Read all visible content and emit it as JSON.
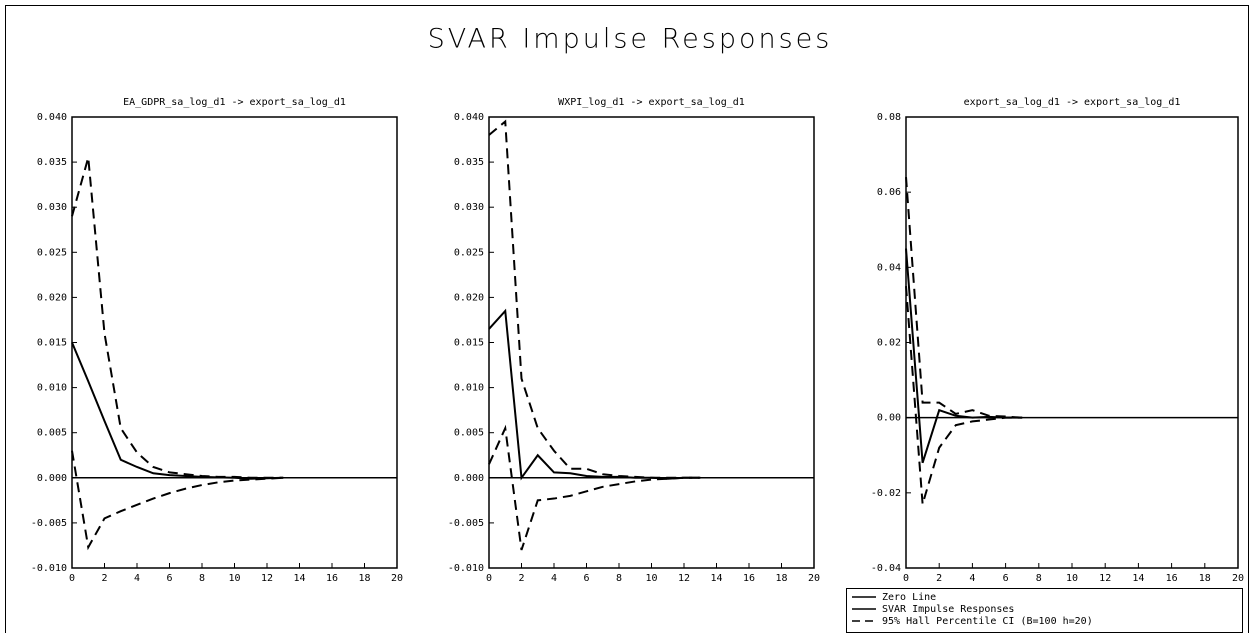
{
  "title": "SVAR Impulse Responses",
  "legend": [
    "Zero Line",
    "SVAR Impulse Responses",
    "95% Hall Percentile CI (B=100 h=20)"
  ],
  "chart_data": [
    {
      "type": "line",
      "title": "EA_GDPR_sa_log_d1 -> export_sa_log_d1",
      "x": [
        0,
        1,
        2,
        3,
        4,
        5,
        6,
        7,
        8,
        9,
        10,
        11,
        12,
        13,
        14,
        15,
        16,
        17,
        18,
        19,
        20
      ],
      "zero_line": 0,
      "series": [
        {
          "style": "solid",
          "color": "#000",
          "values": [
            0.015,
            0.0107,
            0.0063,
            0.002,
            0.0012,
            0.0005,
            0.0003,
            0.0002,
            0.0001,
            5e-05,
            0,
            -0.0001,
            -5e-05,
            0,
            null,
            null,
            null,
            null,
            null,
            null,
            null
          ]
        },
        {
          "style": "dashed",
          "color": "#000",
          "values": [
            0.029,
            0.0355,
            0.016,
            0.0055,
            0.0028,
            0.0012,
            0.0006,
            0.0004,
            0.0002,
            0.0001,
            0.0001,
            0,
            0,
            0,
            null,
            null,
            null,
            null,
            null,
            null,
            null
          ]
        },
        {
          "style": "dashed",
          "color": "#000",
          "values": [
            0.003,
            -0.0077,
            -0.0045,
            -0.0037,
            -0.003,
            -0.0023,
            -0.0017,
            -0.0012,
            -0.0008,
            -0.0005,
            -0.0003,
            -0.0002,
            -0.0001,
            0,
            null,
            null,
            null,
            null,
            null,
            null,
            null
          ]
        }
      ],
      "xlim": [
        0,
        20
      ],
      "xticks": [
        0,
        2,
        4,
        6,
        8,
        10,
        12,
        14,
        16,
        18,
        20
      ],
      "ylim": [
        -0.01,
        0.04
      ],
      "yticks": [
        {
          "value": -0.01,
          "label": "-0.010"
        },
        {
          "value": -0.005,
          "label": "-0.005"
        },
        {
          "value": 0,
          "label": "0.000"
        },
        {
          "value": 0.005,
          "label": "0.005"
        },
        {
          "value": 0.01,
          "label": "0.010"
        },
        {
          "value": 0.015,
          "label": "0.015"
        },
        {
          "value": 0.02,
          "label": "0.020"
        },
        {
          "value": 0.025,
          "label": "0.025"
        },
        {
          "value": 0.03,
          "label": "0.030"
        },
        {
          "value": 0.035,
          "label": "0.035"
        },
        {
          "value": 0.04,
          "label": "0.040"
        }
      ]
    },
    {
      "type": "line",
      "title": "WXPI_log_d1 -> export_sa_log_d1",
      "x": [
        0,
        1,
        2,
        3,
        4,
        5,
        6,
        7,
        8,
        9,
        10,
        11,
        12,
        13,
        14,
        15,
        16,
        17,
        18,
        19,
        20
      ],
      "zero_line": 0,
      "series": [
        {
          "style": "solid",
          "color": "#000",
          "values": [
            0.0165,
            0.0185,
            0,
            0.0025,
            0.0006,
            0.0005,
            0.0002,
            0.0001,
            0.0001,
            0,
            0,
            -0.0001,
            0,
            0,
            null,
            null,
            null,
            null,
            null,
            null,
            null
          ]
        },
        {
          "style": "dashed",
          "color": "#000",
          "values": [
            0.038,
            0.0395,
            0.011,
            0.0055,
            0.003,
            0.001,
            0.001,
            0.0004,
            0.0002,
            0.0001,
            0,
            0,
            0,
            0,
            null,
            null,
            null,
            null,
            null,
            null,
            null
          ]
        },
        {
          "style": "dashed",
          "color": "#000",
          "values": [
            0.0015,
            0.0055,
            -0.008,
            -0.0025,
            -0.0023,
            -0.002,
            -0.0015,
            -0.001,
            -0.0007,
            -0.0004,
            -0.0002,
            -0.0001,
            0,
            0,
            null,
            null,
            null,
            null,
            null,
            null,
            null
          ]
        }
      ],
      "xlim": [
        0,
        20
      ],
      "xticks": [
        0,
        2,
        4,
        6,
        8,
        10,
        12,
        14,
        16,
        18,
        20
      ],
      "ylim": [
        -0.01,
        0.04
      ],
      "yticks": [
        {
          "value": -0.01,
          "label": "-0.010"
        },
        {
          "value": -0.005,
          "label": "-0.005"
        },
        {
          "value": 0,
          "label": "0.000"
        },
        {
          "value": 0.005,
          "label": "0.005"
        },
        {
          "value": 0.01,
          "label": "0.010"
        },
        {
          "value": 0.015,
          "label": "0.015"
        },
        {
          "value": 0.02,
          "label": "0.020"
        },
        {
          "value": 0.025,
          "label": "0.025"
        },
        {
          "value": 0.03,
          "label": "0.030"
        },
        {
          "value": 0.035,
          "label": "0.035"
        },
        {
          "value": 0.04,
          "label": "0.040"
        }
      ]
    },
    {
      "type": "line",
      "title": "export_sa_log_d1 -> export_sa_log_d1",
      "x": [
        0,
        1,
        2,
        3,
        4,
        5,
        6,
        7,
        8,
        9,
        10,
        11,
        12,
        13,
        14,
        15,
        16,
        17,
        18,
        19,
        20
      ],
      "zero_line": 0,
      "series": [
        {
          "style": "solid",
          "color": "#000",
          "values": [
            0.045,
            -0.012,
            0.002,
            0.0005,
            0,
            0.0002,
            0,
            0,
            null,
            null,
            null,
            null,
            null,
            null,
            null,
            null,
            null,
            null,
            null,
            null,
            null
          ]
        },
        {
          "style": "dashed",
          "color": "#000",
          "values": [
            0.064,
            0.004,
            0.004,
            0.001,
            0.002,
            0.0005,
            0.0003,
            0,
            null,
            null,
            null,
            null,
            null,
            null,
            null,
            null,
            null,
            null,
            null,
            null,
            null
          ]
        },
        {
          "style": "dashed",
          "color": "#000",
          "values": [
            0.035,
            -0.023,
            -0.008,
            -0.002,
            -0.001,
            -0.0005,
            0,
            0,
            null,
            null,
            null,
            null,
            null,
            null,
            null,
            null,
            null,
            null,
            null,
            null,
            null
          ]
        }
      ],
      "xlim": [
        0,
        20
      ],
      "xticks": [
        0,
        2,
        4,
        6,
        8,
        10,
        12,
        14,
        16,
        18,
        20
      ],
      "ylim": [
        -0.04,
        0.08
      ],
      "yticks": [
        {
          "value": -0.04,
          "label": "-0.04"
        },
        {
          "value": -0.02,
          "label": "-0.02"
        },
        {
          "value": 0,
          "label": "0.00"
        },
        {
          "value": 0.02,
          "label": "0.02"
        },
        {
          "value": 0.04,
          "label": "0.04"
        },
        {
          "value": 0.06,
          "label": "0.06"
        },
        {
          "value": 0.08,
          "label": "0.08"
        }
      ]
    }
  ]
}
